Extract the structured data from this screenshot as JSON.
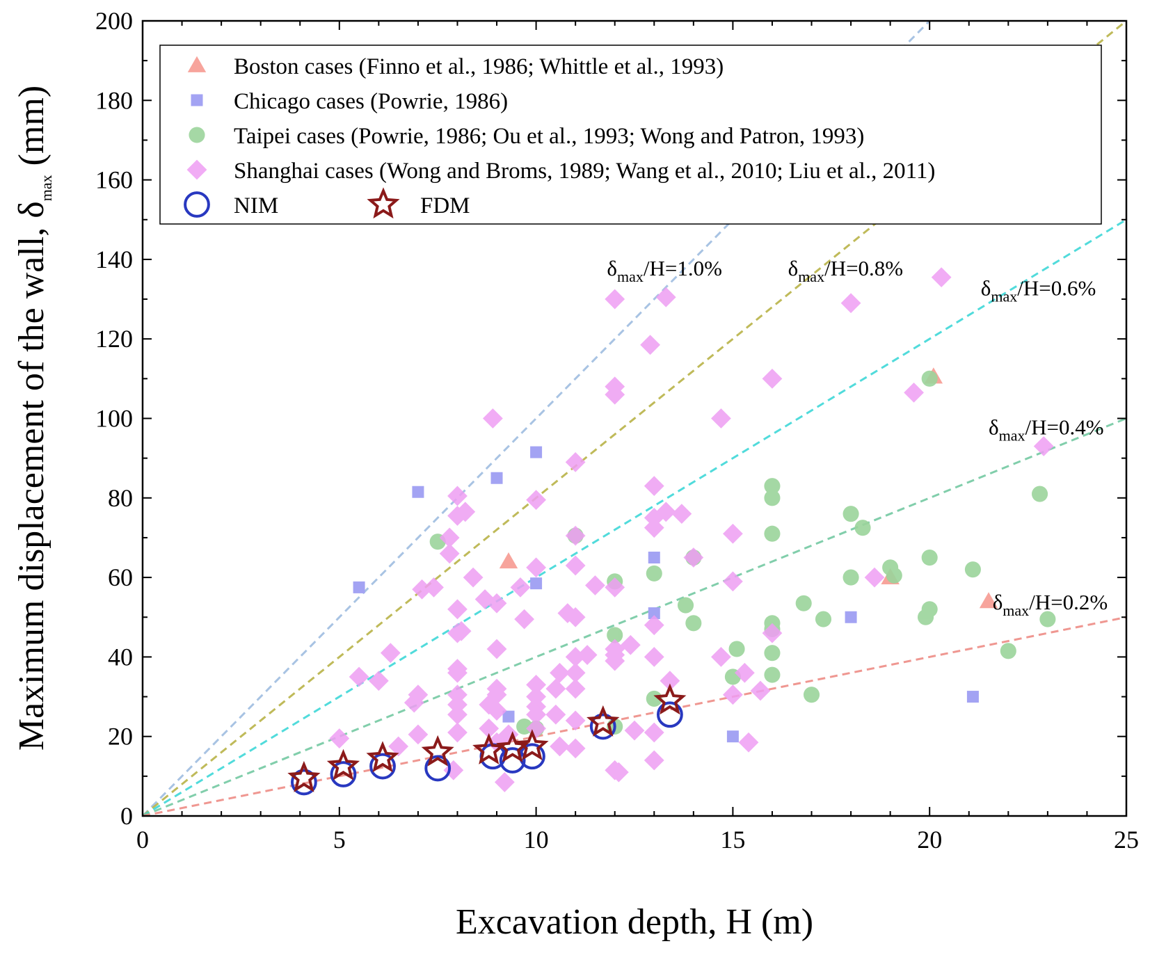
{
  "chart_data": {
    "type": "scatter",
    "xlabel": "Excavation depth, H (m)",
    "ylabel_main": "Maximum displacement of the wall, δ",
    "ylabel_sub": "max",
    "ylabel_tail": " (mm)",
    "xlim": [
      0,
      25
    ],
    "ylim": [
      0,
      200
    ],
    "xticks": [
      0,
      5,
      10,
      15,
      20,
      25
    ],
    "yticks": [
      0,
      20,
      40,
      60,
      80,
      100,
      120,
      140,
      160,
      180,
      200
    ],
    "reference_lines": [
      {
        "ratio": 1.0,
        "color": "#9fbde0",
        "label_pre": "δ",
        "label_sub": "max",
        "label_post": "/H=1.0%",
        "label_at": [
          11.8,
          136
        ]
      },
      {
        "ratio": 0.8,
        "color": "#b9b348",
        "label_pre": "δ",
        "label_sub": "max",
        "label_post": "/H=0.8%",
        "label_at": [
          16.4,
          136
        ]
      },
      {
        "ratio": 0.6,
        "color": "#3fd8d8",
        "label_pre": "δ",
        "label_sub": "max",
        "label_post": "/H=0.6%",
        "label_at": [
          21.3,
          131
        ]
      },
      {
        "ratio": 0.4,
        "color": "#74c9a2",
        "label_pre": "δ",
        "label_sub": "max",
        "label_post": "/H=0.4%",
        "label_at": [
          21.5,
          96
        ]
      },
      {
        "ratio": 0.2,
        "color": "#ee8c86",
        "label_pre": "δ",
        "label_sub": "max",
        "label_post": "/H=0.2%",
        "label_at": [
          21.6,
          52
        ]
      }
    ],
    "series": [
      {
        "name": "Boston cases (Finno et al., 1986; Whittle et al., 1993)",
        "marker": "triangle",
        "color": "#f7a49c",
        "points": [
          [
            9.3,
            64
          ],
          [
            20.1,
            110.5
          ],
          [
            19,
            60
          ],
          [
            21.5,
            54
          ]
        ]
      },
      {
        "name": "Chicago cases (Powrie, 1986)",
        "marker": "square",
        "color": "#a3a3f3",
        "points": [
          [
            5.5,
            57.5
          ],
          [
            7,
            81.5
          ],
          [
            9,
            85
          ],
          [
            9.3,
            25
          ],
          [
            10,
            91.5
          ],
          [
            10,
            58.5
          ],
          [
            13,
            65
          ],
          [
            13,
            51
          ],
          [
            15,
            20
          ],
          [
            18,
            50
          ],
          [
            21.1,
            30
          ]
        ]
      },
      {
        "name": "Taipei cases (Powrie, 1986; Ou et al., 1993; Wong and Patron, 1993)",
        "marker": "circle",
        "color": "#9bd49b",
        "points": [
          [
            7.5,
            69
          ],
          [
            9.7,
            22.5
          ],
          [
            10,
            22
          ],
          [
            11,
            70.5
          ],
          [
            12,
            59
          ],
          [
            12,
            45.5
          ],
          [
            12,
            22.5
          ],
          [
            13,
            61
          ],
          [
            13,
            29.5
          ],
          [
            13.8,
            53
          ],
          [
            14,
            48.5
          ],
          [
            14,
            65
          ],
          [
            15,
            35
          ],
          [
            15.1,
            42
          ],
          [
            16,
            83
          ],
          [
            16,
            80
          ],
          [
            16,
            71
          ],
          [
            16,
            48.5
          ],
          [
            16,
            47
          ],
          [
            16,
            41
          ],
          [
            16,
            35.5
          ],
          [
            16.8,
            53.5
          ],
          [
            17,
            30.5
          ],
          [
            17.3,
            49.5
          ],
          [
            18,
            76
          ],
          [
            18,
            60
          ],
          [
            18.3,
            72.5
          ],
          [
            19,
            62.5
          ],
          [
            19.1,
            60.5
          ],
          [
            20,
            110
          ],
          [
            20,
            65
          ],
          [
            20,
            52
          ],
          [
            19.9,
            50
          ],
          [
            21.1,
            62
          ],
          [
            22,
            41.5
          ],
          [
            22.8,
            81
          ],
          [
            23,
            49.5
          ]
        ]
      },
      {
        "name": "Shanghai cases (Wong and Broms, 1989; Wang et al., 2010; Liu et al., 2011)",
        "marker": "diamond",
        "color": "#ee9ef3",
        "points": [
          [
            5,
            19.5
          ],
          [
            5.5,
            35
          ],
          [
            6,
            34
          ],
          [
            6.3,
            41
          ],
          [
            6.5,
            17.5
          ],
          [
            6.9,
            28.5
          ],
          [
            7,
            30.5
          ],
          [
            7,
            20.5
          ],
          [
            7.1,
            57
          ],
          [
            7.4,
            57.5
          ],
          [
            7.9,
            11.5
          ],
          [
            7.8,
            70
          ],
          [
            7.8,
            66
          ],
          [
            8,
            80.5
          ],
          [
            8,
            75.5
          ],
          [
            8,
            52
          ],
          [
            8,
            46
          ],
          [
            8,
            37
          ],
          [
            8,
            36
          ],
          [
            8,
            30.5
          ],
          [
            8,
            28
          ],
          [
            8,
            25.5
          ],
          [
            8,
            21
          ],
          [
            8.2,
            76.5
          ],
          [
            8.1,
            46.5
          ],
          [
            8.4,
            60
          ],
          [
            8.7,
            54.5
          ],
          [
            8.8,
            28
          ],
          [
            8.8,
            22
          ],
          [
            8.9,
            100
          ],
          [
            9,
            53.5
          ],
          [
            9,
            42
          ],
          [
            9,
            32
          ],
          [
            9,
            30.5
          ],
          [
            9,
            26.5
          ],
          [
            9,
            18.5
          ],
          [
            9.2,
            8.5
          ],
          [
            9.3,
            20.5
          ],
          [
            9.6,
            57.5
          ],
          [
            9.7,
            49.5
          ],
          [
            10,
            79.5
          ],
          [
            10,
            62.5
          ],
          [
            10,
            33
          ],
          [
            10,
            30
          ],
          [
            10,
            27.5
          ],
          [
            10,
            25.5
          ],
          [
            10,
            22
          ],
          [
            10.5,
            32
          ],
          [
            10.5,
            25.5
          ],
          [
            10.6,
            17.5
          ],
          [
            10.6,
            36
          ],
          [
            10.8,
            51
          ],
          [
            11,
            89
          ],
          [
            11,
            70.5
          ],
          [
            11,
            63
          ],
          [
            11,
            50
          ],
          [
            11,
            40
          ],
          [
            11,
            36
          ],
          [
            11,
            32
          ],
          [
            11,
            24
          ],
          [
            11,
            17
          ],
          [
            11.3,
            40.5
          ],
          [
            11.5,
            58
          ],
          [
            12,
            130
          ],
          [
            12,
            108
          ],
          [
            12,
            106
          ],
          [
            12,
            57.5
          ],
          [
            12,
            42
          ],
          [
            12,
            40.5
          ],
          [
            12,
            39
          ],
          [
            12,
            11.5
          ],
          [
            12.1,
            11
          ],
          [
            12.4,
            43
          ],
          [
            12.5,
            21.5
          ],
          [
            12.9,
            118.5
          ],
          [
            13,
            83
          ],
          [
            13,
            75
          ],
          [
            13,
            72.5
          ],
          [
            13,
            48
          ],
          [
            13,
            40
          ],
          [
            13,
            21
          ],
          [
            13,
            14
          ],
          [
            13.3,
            130.5
          ],
          [
            13.3,
            76.5
          ],
          [
            13.4,
            34
          ],
          [
            13.7,
            76
          ],
          [
            14,
            65
          ],
          [
            14.7,
            100
          ],
          [
            15,
            71
          ],
          [
            15,
            59
          ],
          [
            14.7,
            40
          ],
          [
            15,
            30.5
          ],
          [
            15.3,
            36
          ],
          [
            15.4,
            18.5
          ],
          [
            15.7,
            31.5
          ],
          [
            16,
            110
          ],
          [
            16,
            46
          ],
          [
            18,
            129
          ],
          [
            18.6,
            60
          ],
          [
            19.6,
            106.5
          ],
          [
            20.3,
            135.5
          ],
          [
            22.9,
            93
          ]
        ]
      },
      {
        "name": "NIM",
        "marker": "open-circle",
        "color": "#2838c0",
        "points": [
          [
            4.1,
            8.5
          ],
          [
            5.1,
            10.5
          ],
          [
            6.1,
            12.5
          ],
          [
            7.5,
            12
          ],
          [
            8.9,
            15
          ],
          [
            9.4,
            14
          ],
          [
            9.9,
            15
          ],
          [
            11.7,
            22.5
          ],
          [
            13.4,
            25.5
          ]
        ]
      },
      {
        "name": "FDM",
        "marker": "star",
        "color": "#8b1a1a",
        "points": [
          [
            4.1,
            9.5
          ],
          [
            5.1,
            12.5
          ],
          [
            6.1,
            14.5
          ],
          [
            7.5,
            16
          ],
          [
            8.8,
            16.5
          ],
          [
            9.4,
            17
          ],
          [
            9.9,
            17.5
          ],
          [
            11.7,
            23.5
          ],
          [
            13.4,
            29
          ]
        ]
      }
    ],
    "legend": {
      "position": "top-left",
      "rows": [
        {
          "series": [
            0
          ]
        },
        {
          "series": [
            1
          ]
        },
        {
          "series": [
            2
          ]
        },
        {
          "series": [
            3
          ]
        },
        {
          "series": [
            4,
            5
          ]
        }
      ]
    }
  }
}
